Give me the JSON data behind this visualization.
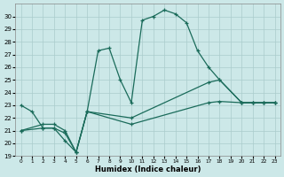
{
  "xlabel": "Humidex (Indice chaleur)",
  "bg_color": "#cce8e8",
  "grid_color": "#aacccc",
  "line_color": "#1a6b5a",
  "xlim": [
    -0.5,
    23.5
  ],
  "ylim": [
    19,
    31
  ],
  "yticks": [
    19,
    20,
    21,
    22,
    23,
    24,
    25,
    26,
    27,
    28,
    29,
    30
  ],
  "xticks": [
    0,
    1,
    2,
    3,
    4,
    5,
    6,
    7,
    8,
    9,
    10,
    11,
    12,
    13,
    14,
    15,
    16,
    17,
    18,
    19,
    20,
    21,
    22,
    23
  ],
  "main_x": [
    0,
    1,
    2,
    3,
    4,
    5,
    6,
    7,
    8,
    9,
    10,
    11,
    12,
    13,
    14,
    15,
    16,
    17,
    18,
    20,
    21,
    22,
    23
  ],
  "main_y": [
    23.0,
    22.5,
    21.2,
    21.2,
    20.2,
    19.3,
    22.5,
    27.3,
    27.5,
    25.0,
    23.2,
    29.7,
    30.0,
    30.5,
    30.2,
    29.5,
    27.3,
    26.0,
    25.0,
    23.2,
    23.2,
    23.2,
    23.2
  ],
  "line2_x": [
    0,
    2,
    3,
    4,
    5,
    6,
    10,
    17,
    18,
    20,
    21,
    22,
    23
  ],
  "line2_y": [
    21.0,
    21.5,
    21.5,
    21.0,
    19.3,
    22.5,
    22.0,
    24.8,
    25.0,
    23.2,
    23.2,
    23.2,
    23.2
  ],
  "line3_x": [
    0,
    2,
    3,
    4,
    5,
    6,
    10,
    17,
    18,
    20,
    21,
    22,
    23
  ],
  "line3_y": [
    21.0,
    21.2,
    21.2,
    20.8,
    19.3,
    22.5,
    21.5,
    23.2,
    23.3,
    23.2,
    23.2,
    23.2,
    23.2
  ]
}
